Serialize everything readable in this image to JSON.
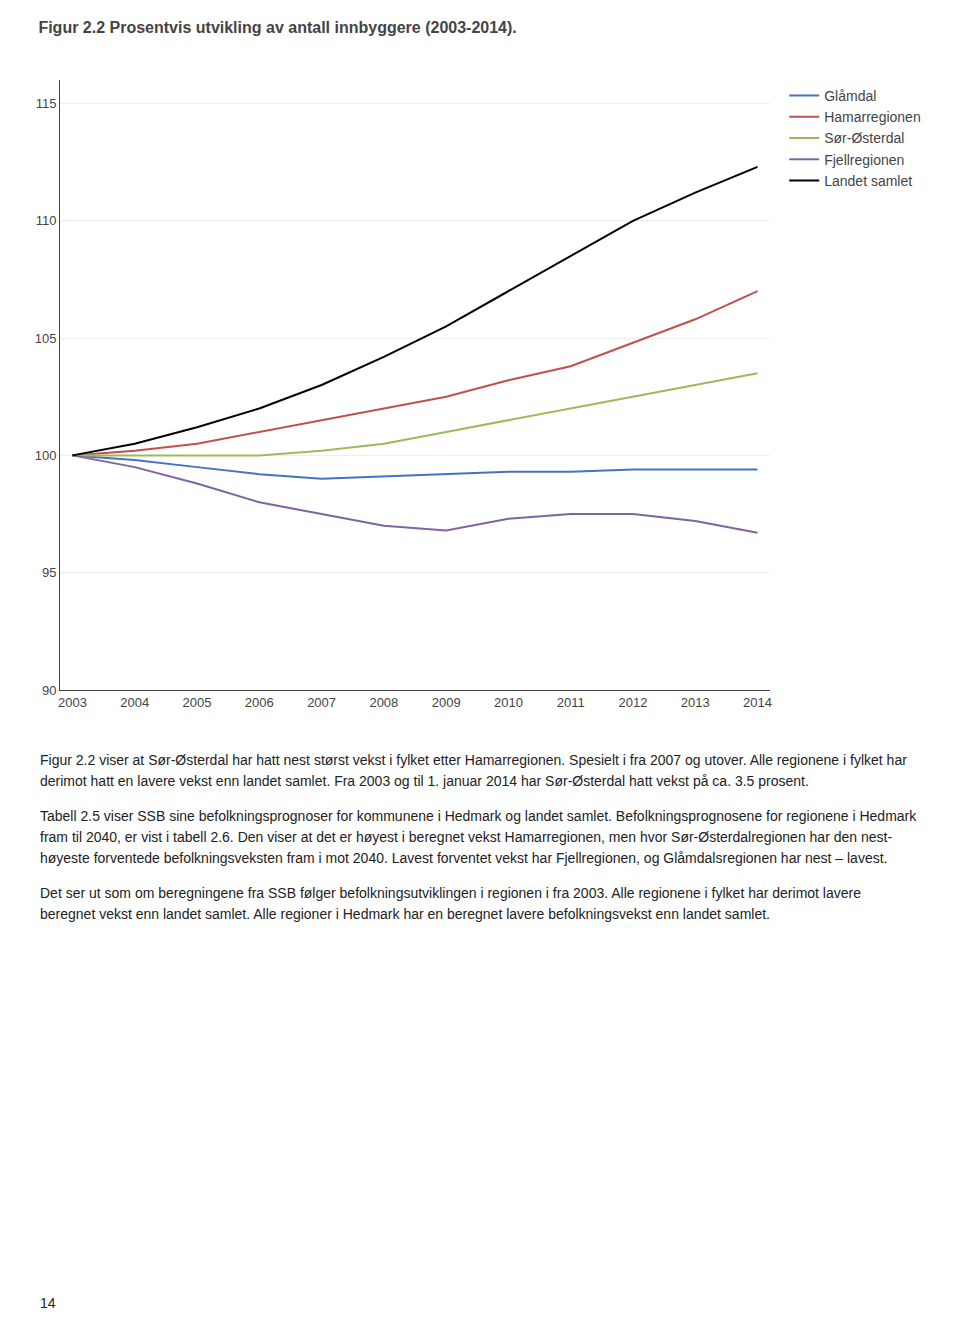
{
  "chart_data": {
    "type": "line",
    "title": "Figur 2.2 Prosentvis utvikling av antall innbyggere (2003-2014).",
    "x": [
      2003,
      2004,
      2005,
      2006,
      2007,
      2008,
      2009,
      2010,
      2011,
      2012,
      2013,
      2014
    ],
    "series": [
      {
        "name": "Glåmdal",
        "color": "#4472C4",
        "values": [
          100,
          99.8,
          99.5,
          99.2,
          99.0,
          99.1,
          99.2,
          99.3,
          99.3,
          99.4,
          99.4,
          99.4
        ]
      },
      {
        "name": "Hamarregionen",
        "color": "#C0504D",
        "values": [
          100,
          100.2,
          100.5,
          101.0,
          101.5,
          102.0,
          102.5,
          103.2,
          103.8,
          104.8,
          105.8,
          107.0
        ]
      },
      {
        "name": "Sør-Østerdal",
        "color": "#9BBB59",
        "values": [
          100,
          100.0,
          100.0,
          100.0,
          100.2,
          100.5,
          101.0,
          101.5,
          102.0,
          102.5,
          103.0,
          103.5
        ]
      },
      {
        "name": "Fjellregionen",
        "color": "#8064A2",
        "values": [
          100,
          99.5,
          98.8,
          98.0,
          97.5,
          97.0,
          96.8,
          97.3,
          97.5,
          97.5,
          97.2,
          96.7
        ]
      },
      {
        "name": "Landet samlet",
        "color": "#000000",
        "values": [
          100,
          100.5,
          101.2,
          102.0,
          103.0,
          104.2,
          105.5,
          107.0,
          108.5,
          110.0,
          111.2,
          112.3
        ]
      }
    ],
    "xlim": [
      2002.8,
      2014.2
    ],
    "xticks": [
      2003,
      2004,
      2005,
      2006,
      2007,
      2008,
      2009,
      2010,
      2011,
      2012,
      2013,
      2014
    ],
    "ylim": [
      90,
      116
    ],
    "yticks": [
      90,
      95,
      100,
      105,
      110,
      115
    ],
    "grid": true,
    "legend": "right",
    "annotations": [
      "Figur 2.2 viser at Sør-Østerdal har hatt nest størst vekst i fylket etter Hamarregionen. Spesielt i fra 2007 og utover. Alle regionene i fylket har derimot hatt en lavere vekst enn landet samlet. Fra 2003 og til 1. januar 2014 har Sør-Østerdal hatt vekst på ca. 3.5 prosent.",
      "Tabell 2.5 viser SSB sine befolkningsprognoser for kommunene i Hedmark og landet samlet. Befolkningsprognosene for regionene i Hedmark fram til 2040, er vist i tabell 2.6. Den viser at det er høyest i beregnet vekst Hamarregionen, men hvor Sør-Østerdalregionen har den nest-høyeste forventede befolkningsveksten fram i mot 2040. Lavest forventet vekst har Fjellregionen, og Glåmdalsregionen har nest – lavest.",
      "Det ser ut som om beregningene fra SSB følger befolkningsutviklingen i regionen i fra 2003. Alle regionene i fylket har derimot lavere beregnet vekst enn landet samlet. Alle regioner i Hedmark har en beregnet lavere befolkningsvekst enn landet samlet.",
      "14"
    ]
  }
}
